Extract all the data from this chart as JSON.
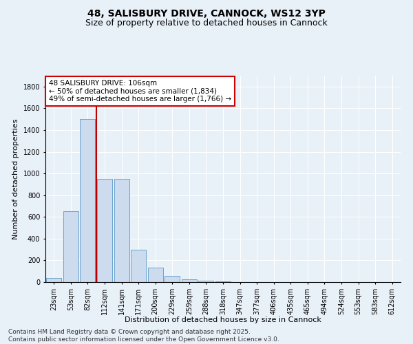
{
  "title": "48, SALISBURY DRIVE, CANNOCK, WS12 3YP",
  "subtitle": "Size of property relative to detached houses in Cannock",
  "xlabel": "Distribution of detached houses by size in Cannock",
  "ylabel": "Number of detached properties",
  "categories": [
    "23sqm",
    "53sqm",
    "82sqm",
    "112sqm",
    "141sqm",
    "171sqm",
    "200sqm",
    "229sqm",
    "259sqm",
    "288sqm",
    "318sqm",
    "347sqm",
    "377sqm",
    "406sqm",
    "435sqm",
    "465sqm",
    "494sqm",
    "524sqm",
    "553sqm",
    "583sqm",
    "612sqm"
  ],
  "values": [
    40,
    650,
    1500,
    950,
    950,
    295,
    130,
    60,
    25,
    10,
    5,
    0,
    0,
    0,
    0,
    0,
    0,
    0,
    0,
    0,
    0
  ],
  "bar_color": "#ccdcee",
  "bar_edge_color": "#6ba3cd",
  "vline_x_index": 2.5,
  "vline_color": "#bb0000",
  "annotation_text": "48 SALISBURY DRIVE: 106sqm\n← 50% of detached houses are smaller (1,834)\n49% of semi-detached houses are larger (1,766) →",
  "annotation_box_color": "#ffffff",
  "annotation_border_color": "#cc0000",
  "ylim": [
    0,
    1900
  ],
  "yticks": [
    0,
    200,
    400,
    600,
    800,
    1000,
    1200,
    1400,
    1600,
    1800
  ],
  "bg_color": "#e8f0f8",
  "plot_bg_color": "#e8f0f8",
  "grid_color": "#ffffff",
  "footer": "Contains HM Land Registry data © Crown copyright and database right 2025.\nContains public sector information licensed under the Open Government Licence v3.0.",
  "title_fontsize": 10,
  "subtitle_fontsize": 9,
  "xlabel_fontsize": 8,
  "ylabel_fontsize": 8,
  "tick_fontsize": 7,
  "annotation_fontsize": 7.5,
  "footer_fontsize": 6.5
}
